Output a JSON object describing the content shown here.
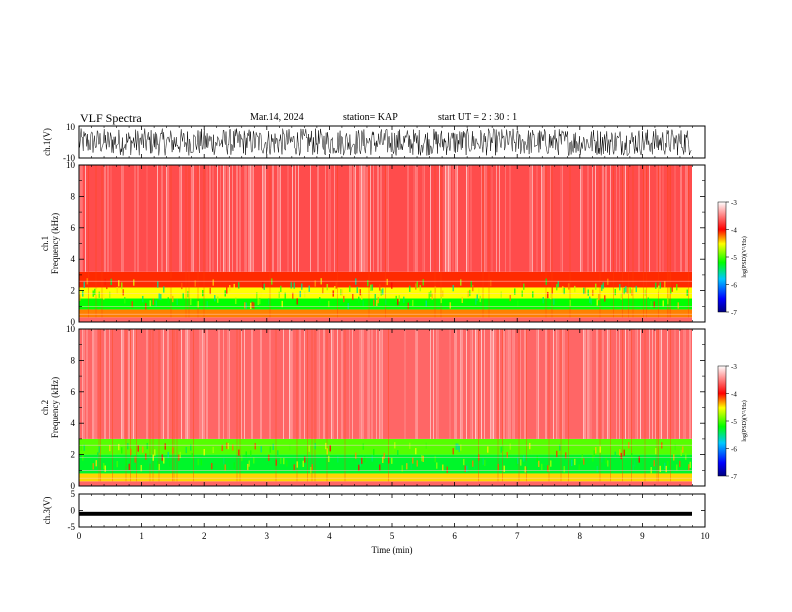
{
  "header": {
    "title": "VLF Spectra",
    "date": "Mar.14, 2024",
    "station": "station= KAP",
    "start": "start  UT  =   2  : 30 : 1"
  },
  "chart_data": [
    {
      "type": "line",
      "panel": "ch1-waveform",
      "ylabel": "ch.1(V)",
      "ylim": [
        -10,
        10
      ],
      "yticks": [
        "10",
        "-10"
      ],
      "xlim": [
        0,
        10
      ],
      "color": "#000000"
    },
    {
      "type": "heatmap",
      "panel": "ch1-spectrogram",
      "ylabel": "ch.1\nFrequency  (kHz)",
      "ylim": [
        0,
        10
      ],
      "yticks": [
        "0",
        "2",
        "4",
        "6",
        "8",
        "10"
      ],
      "xlim": [
        0,
        9.8
      ],
      "bands": [
        {
          "from": 0.0,
          "to": 0.3,
          "level": -3.6
        },
        {
          "from": 0.3,
          "to": 0.8,
          "level": -4.3
        },
        {
          "from": 0.8,
          "to": 1.5,
          "level": -5.2
        },
        {
          "from": 1.5,
          "to": 2.2,
          "level": -4.6
        },
        {
          "from": 2.2,
          "to": 3.2,
          "level": -4.1
        },
        {
          "from": 3.2,
          "to": 10.0,
          "level": -3.7
        }
      ],
      "colorbar": {
        "label": "log(PSD)(V²/Hz)",
        "range": [
          -7,
          -3
        ],
        "ticks": [
          "-3",
          "-4",
          "-5",
          "-6",
          "-7"
        ]
      }
    },
    {
      "type": "heatmap",
      "panel": "ch2-spectrogram",
      "ylabel": "ch.2\nFrequency  (kHz)",
      "ylim": [
        0,
        10
      ],
      "yticks": [
        "0",
        "2",
        "4",
        "6",
        "8",
        "10"
      ],
      "xlim": [
        0,
        9.8
      ],
      "bands": [
        {
          "from": 0.0,
          "to": 0.3,
          "level": -3.6
        },
        {
          "from": 0.3,
          "to": 0.8,
          "level": -4.5
        },
        {
          "from": 0.8,
          "to": 2.0,
          "level": -5.3
        },
        {
          "from": 2.0,
          "to": 3.0,
          "level": -5.0
        },
        {
          "from": 3.0,
          "to": 10.0,
          "level": -3.6
        }
      ],
      "colorbar": {
        "label": "log(PSD)(V²/Hz)",
        "range": [
          -7,
          -3
        ],
        "ticks": [
          "-3",
          "-4",
          "-5",
          "-6",
          "-7"
        ]
      }
    },
    {
      "type": "line",
      "panel": "ch3-waveform",
      "ylabel": "ch.3(V)",
      "ylim": [
        -5,
        5
      ],
      "yticks": [
        "5",
        "0",
        "-5"
      ],
      "xlim": [
        0,
        10
      ],
      "level": -1,
      "amplitude": 0.6
    }
  ],
  "x_axis": {
    "label": "Time  (min)",
    "ticks": [
      "0",
      "1",
      "2",
      "3",
      "4",
      "5",
      "6",
      "7",
      "8",
      "9",
      "10"
    ]
  }
}
